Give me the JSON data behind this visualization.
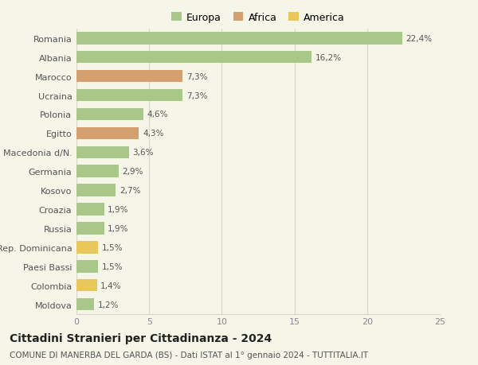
{
  "categories": [
    "Romania",
    "Albania",
    "Marocco",
    "Ucraina",
    "Polonia",
    "Egitto",
    "Macedonia d/N.",
    "Germania",
    "Kosovo",
    "Croazia",
    "Russia",
    "Rep. Dominicana",
    "Paesi Bassi",
    "Colombia",
    "Moldova"
  ],
  "values": [
    22.4,
    16.2,
    7.3,
    7.3,
    4.6,
    4.3,
    3.6,
    2.9,
    2.7,
    1.9,
    1.9,
    1.5,
    1.5,
    1.4,
    1.2
  ],
  "labels": [
    "22,4%",
    "16,2%",
    "7,3%",
    "7,3%",
    "4,6%",
    "4,3%",
    "3,6%",
    "2,9%",
    "2,7%",
    "1,9%",
    "1,9%",
    "1,5%",
    "1,5%",
    "1,4%",
    "1,2%"
  ],
  "continents": [
    "Europa",
    "Europa",
    "Africa",
    "Europa",
    "Europa",
    "Africa",
    "Europa",
    "Europa",
    "Europa",
    "Europa",
    "Europa",
    "America",
    "Europa",
    "America",
    "Europa"
  ],
  "colors": {
    "Europa": "#a8c88a",
    "Africa": "#d4a070",
    "America": "#e8c85a"
  },
  "legend": [
    {
      "label": "Europa",
      "color": "#a8c88a"
    },
    {
      "label": "Africa",
      "color": "#d4a070"
    },
    {
      "label": "America",
      "color": "#e8c85a"
    }
  ],
  "xlim": [
    0,
    25
  ],
  "xticks": [
    0,
    5,
    10,
    15,
    20,
    25
  ],
  "title": "Cittadini Stranieri per Cittadinanza - 2024",
  "subtitle": "COMUNE DI MANERBA DEL GARDA (BS) - Dati ISTAT al 1° gennaio 2024 - TUTTITALIA.IT",
  "background_color": "#f5f5e8",
  "grid_color": "#d8d8c8",
  "bar_height": 0.65,
  "title_fontsize": 10,
  "subtitle_fontsize": 7.5,
  "label_fontsize": 7.5,
  "tick_fontsize": 8,
  "legend_fontsize": 9
}
